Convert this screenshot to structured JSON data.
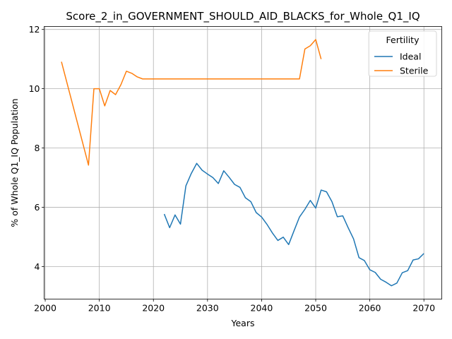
{
  "chart_data": {
    "type": "line",
    "title": "Score_2_in_GOVERNMENT_SHOULD_AID_BLACKS_for_Whole_Q1_IQ",
    "xlabel": "Years",
    "ylabel": "% of Whole Q1_IQ Population",
    "xlim": [
      1999.8,
      2073.3
    ],
    "ylim": [
      2.9,
      12.1
    ],
    "xticks": [
      2000,
      2010,
      2020,
      2030,
      2040,
      2050,
      2060,
      2070
    ],
    "yticks": [
      4,
      6,
      8,
      10,
      12
    ],
    "grid": true,
    "legend": {
      "title": "Fertility",
      "placement": "top-right"
    },
    "series": [
      {
        "name": "Ideal",
        "color": "#1f77b4",
        "x": [
          2022,
          2023,
          2024,
          2025,
          2026,
          2027,
          2028,
          2029,
          2030,
          2031,
          2032,
          2033,
          2034,
          2035,
          2036,
          2037,
          2038,
          2039,
          2040,
          2041,
          2042,
          2043,
          2044,
          2045,
          2046,
          2047,
          2048,
          2049,
          2050,
          2051,
          2052,
          2053,
          2054,
          2055,
          2056,
          2057,
          2058,
          2059,
          2060,
          2061,
          2062,
          2063,
          2064,
          2065,
          2066,
          2067,
          2068,
          2069,
          2070
        ],
        "y": [
          5.77,
          5.31,
          5.74,
          5.43,
          6.72,
          7.14,
          7.48,
          7.25,
          7.12,
          7.0,
          6.8,
          7.23,
          7.01,
          6.77,
          6.67,
          6.32,
          6.19,
          5.82,
          5.67,
          5.42,
          5.13,
          4.88,
          4.99,
          4.74,
          5.21,
          5.67,
          5.93,
          6.23,
          5.97,
          6.58,
          6.52,
          6.19,
          5.68,
          5.71,
          5.31,
          4.93,
          4.3,
          4.2,
          3.89,
          3.8,
          3.57,
          3.47,
          3.35,
          3.44,
          3.79,
          3.86,
          4.22,
          4.26,
          4.44
        ]
      },
      {
        "name": "Sterile",
        "color": "#ff7f0e",
        "x": [
          2003,
          2008,
          2009,
          2010,
          2011,
          2012,
          2013,
          2014,
          2015,
          2016,
          2017,
          2018,
          2019,
          2020,
          2025,
          2030,
          2035,
          2040,
          2045,
          2047,
          2048,
          2049,
          2050,
          2051
        ],
        "y": [
          10.91,
          7.42,
          10.0,
          10.0,
          9.42,
          9.94,
          9.8,
          10.14,
          10.59,
          10.52,
          10.4,
          10.33,
          10.33,
          10.33,
          10.33,
          10.33,
          10.33,
          10.33,
          10.33,
          10.33,
          11.34,
          11.45,
          11.66,
          11.0
        ]
      }
    ]
  }
}
